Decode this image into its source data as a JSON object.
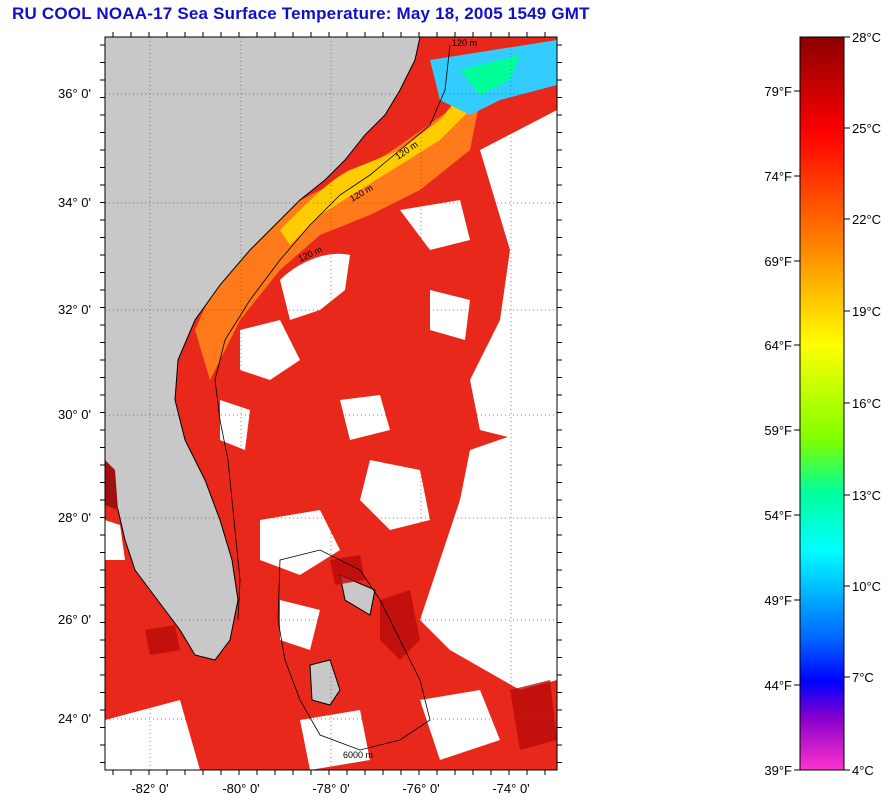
{
  "title": "RU COOL  NOAA-17  Sea Surface Temperature:  May 18, 2005 1549 GMT",
  "map": {
    "lat_labels": [
      "36° 0'",
      "34° 0'",
      "32° 0'",
      "30° 0'",
      "28° 0'",
      "26° 0'",
      "24° 0'"
    ],
    "lon_labels": [
      "-82° 0'",
      "-80° 0'",
      "-78° 0'",
      "-76° 0'",
      "-74° 0'"
    ],
    "contour_labels": [
      "120 m",
      "120 m",
      "120 m",
      "120 m",
      "6000 m"
    ],
    "colors": {
      "land": "#c8c8c8",
      "cloud": "#ffffff",
      "coastline": "#000000"
    }
  },
  "colorbar": {
    "celsius_labels": [
      "28°C",
      "25°C",
      "22°C",
      "19°C",
      "16°C",
      "13°C",
      "10°C",
      "7°C",
      "4°C"
    ],
    "fahrenheit_labels": [
      "79°F",
      "74°F",
      "69°F",
      "64°F",
      "59°F",
      "54°F",
      "49°F",
      "44°F",
      "39°F"
    ],
    "stops": [
      "#8b0000",
      "#ff0000",
      "#ff7f00",
      "#ffff00",
      "#7fff00",
      "#00ffaa",
      "#00ffff",
      "#0066ff",
      "#0000ff",
      "#8800cc",
      "#ff33cc"
    ]
  }
}
